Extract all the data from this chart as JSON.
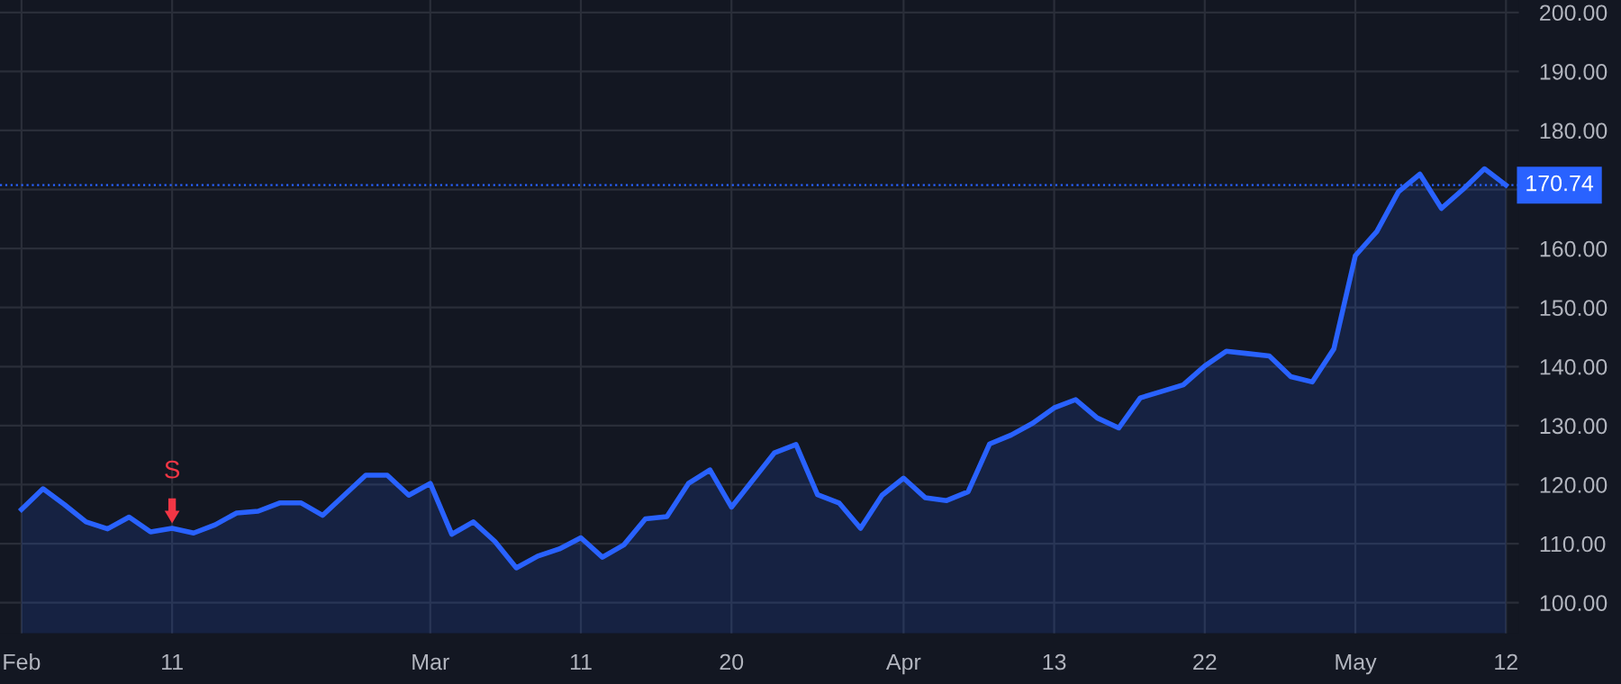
{
  "chart_data": {
    "type": "area",
    "categories": [
      "Feb",
      null,
      null,
      null,
      null,
      null,
      null,
      "11",
      null,
      null,
      null,
      null,
      null,
      null,
      null,
      null,
      null,
      null,
      null,
      "Mar",
      null,
      null,
      null,
      null,
      null,
      null,
      "11",
      null,
      null,
      null,
      null,
      null,
      null,
      "20",
      null,
      null,
      null,
      null,
      null,
      null,
      null,
      "Apr",
      null,
      null,
      null,
      null,
      null,
      null,
      "13",
      null,
      null,
      null,
      null,
      null,
      null,
      "22",
      null,
      null,
      null,
      null,
      null,
      null,
      "May",
      null,
      null,
      null,
      null,
      null,
      null,
      "12"
    ],
    "series": [
      {
        "color": "#2962ff",
        "values": [
          115.8,
          119.3,
          116.6,
          113.7,
          112.5,
          114.5,
          112.0,
          112.6,
          111.8,
          113.2,
          115.2,
          115.5,
          116.9,
          116.9,
          114.8,
          118.2,
          121.6,
          121.6,
          118.2,
          120.2,
          111.6,
          113.7,
          110.4,
          105.9,
          107.9,
          109.1,
          111.0,
          107.7,
          109.8,
          114.2,
          114.6,
          120.2,
          122.5,
          116.2,
          120.8,
          125.4,
          126.8,
          118.3,
          116.9,
          112.6,
          118.2,
          121.1,
          117.8,
          117.3,
          118.8,
          126.9,
          128.4,
          130.4,
          133.0,
          134.4,
          131.3,
          129.6,
          134.7,
          135.8,
          136.9,
          140.1,
          142.6,
          142.2,
          141.8,
          138.3,
          137.4,
          143.0,
          158.8,
          162.9,
          169.6,
          172.6,
          166.8,
          170.0,
          173.5,
          170.74
        ]
      }
    ],
    "ylim": [
      94.8,
      202.1
    ],
    "yticks": [
      {
        "value": 100,
        "label": "100.00"
      },
      {
        "value": 110,
        "label": "110.00"
      },
      {
        "value": 120,
        "label": "120.00"
      },
      {
        "value": 130,
        "label": "130.00"
      },
      {
        "value": 140,
        "label": "140.00"
      },
      {
        "value": 150,
        "label": "150.00"
      },
      {
        "value": 160,
        "label": "160.00"
      },
      {
        "value": 170,
        "label": null
      },
      {
        "value": 180,
        "label": "180.00"
      },
      {
        "value": 190,
        "label": "190.00"
      },
      {
        "value": 200,
        "label": "200.00"
      }
    ],
    "ref_lines": [
      {
        "axis": "y",
        "value": 170.74,
        "label": "170.74",
        "color": "#2962ff",
        "line_style": "dotted"
      }
    ],
    "annotations": [
      {
        "text": "S",
        "x": "11",
        "y": 112.6
      }
    ],
    "grid": true
  }
}
